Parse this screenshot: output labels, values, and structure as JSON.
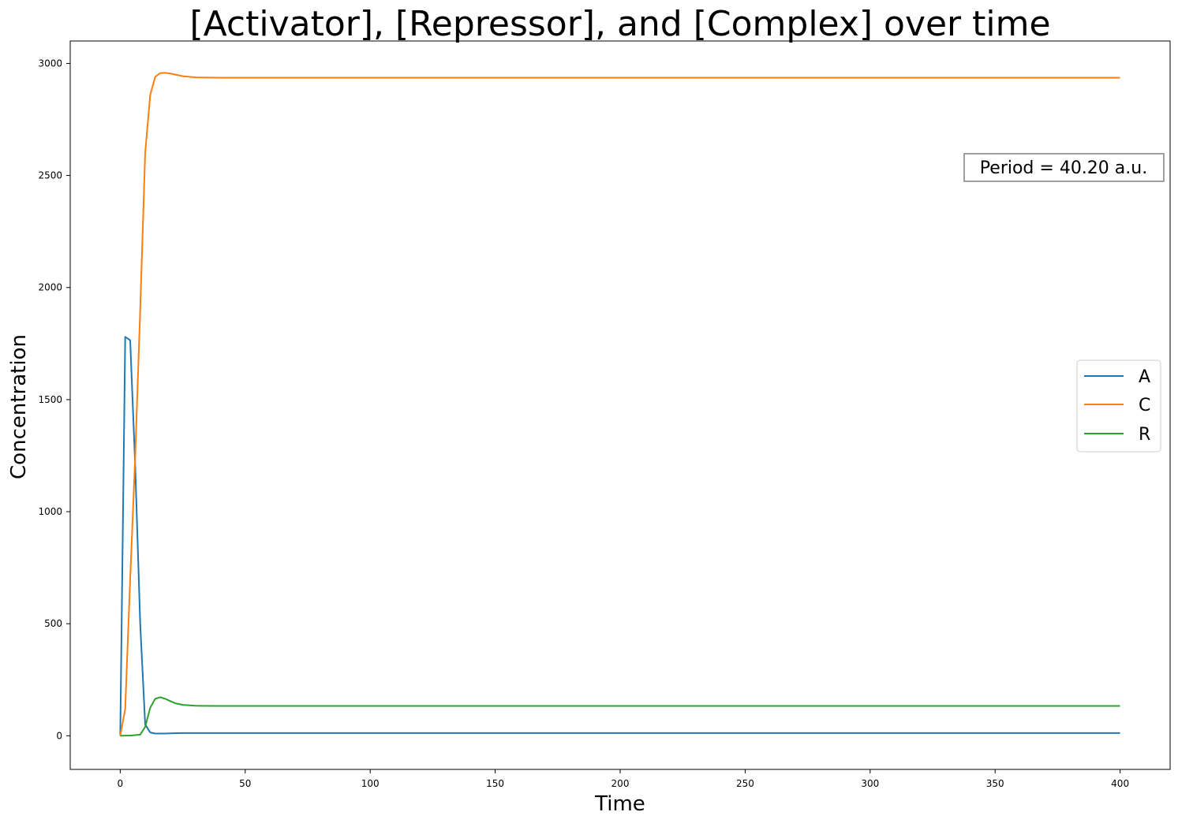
{
  "chart_data": {
    "type": "line",
    "title": "[Activator], [Repressor], and [Complex] over time",
    "xlabel": "Time",
    "ylabel": "Concentration",
    "xlim": [
      -20,
      420
    ],
    "ylim": [
      -150,
      3100
    ],
    "xticks": [
      0,
      50,
      100,
      150,
      200,
      250,
      300,
      350,
      400
    ],
    "yticks": [
      0,
      500,
      1000,
      1500,
      2000,
      2500,
      3000
    ],
    "grid": false,
    "legend_position": "center-right",
    "annotation": "Period = 40.20 a.u.",
    "series": [
      {
        "name": "A",
        "color": "#1f77b4",
        "x": [
          0,
          2,
          4,
          6,
          8,
          10,
          12,
          14,
          16,
          18,
          20,
          25,
          30,
          40,
          60,
          100,
          200,
          300,
          400
        ],
        "y": [
          0,
          1780,
          1765,
          1200,
          500,
          50,
          15,
          10,
          10,
          10,
          11,
          12,
          12,
          12,
          12,
          12,
          12,
          12,
          12
        ]
      },
      {
        "name": "C",
        "color": "#ff7f0e",
        "x": [
          0,
          2,
          4,
          6,
          8,
          10,
          12,
          14,
          16,
          18,
          20,
          22,
          25,
          30,
          40,
          60,
          100,
          200,
          300,
          400
        ],
        "y": [
          0,
          120,
          700,
          1250,
          1900,
          2600,
          2860,
          2940,
          2957,
          2958,
          2955,
          2950,
          2943,
          2938,
          2936,
          2936,
          2936,
          2936,
          2936,
          2936
        ]
      },
      {
        "name": "R",
        "color": "#2ca02c",
        "x": [
          0,
          2,
          4,
          6,
          8,
          10,
          12,
          14,
          16,
          18,
          20,
          22,
          25,
          30,
          40,
          60,
          100,
          200,
          300,
          400
        ],
        "y": [
          0,
          1,
          1,
          3,
          5,
          40,
          125,
          165,
          172,
          165,
          155,
          145,
          138,
          134,
          133,
          133,
          133,
          133,
          133,
          133
        ]
      }
    ]
  }
}
